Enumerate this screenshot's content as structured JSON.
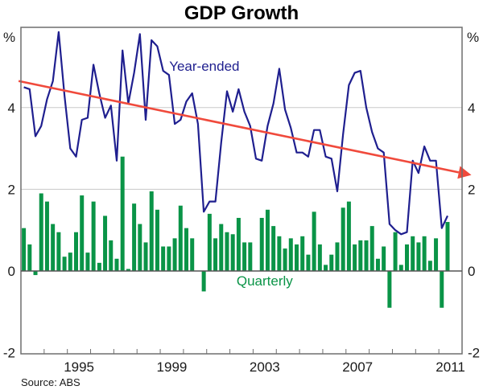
{
  "chart_data": {
    "type": "bar",
    "title": "GDP Growth",
    "ylabel_left": "%",
    "ylabel_right": "%",
    "xlabel": "",
    "source": "Source: ABS",
    "xlim": [
      1993,
      2012
    ],
    "ylim": [
      -2,
      6
    ],
    "yticks": [
      -2,
      0,
      2,
      4
    ],
    "ytick_labels": [
      "-2",
      "0",
      "2",
      "4"
    ],
    "xtick_labels": [
      "1995",
      "1999",
      "2003",
      "2007",
      "2011"
    ],
    "xtick_label_years": [
      1995,
      1999,
      2003,
      2007,
      2011
    ],
    "grid": true,
    "start_quarter": "1993Q1",
    "colors": {
      "year_ended": "#1f1f8f",
      "quarterly": "#0a9447",
      "trend": "#f04a3c",
      "gridline": "#c8c8c8",
      "axis": "#6e6e6e"
    },
    "series": [
      {
        "name": "Quarterly",
        "kind": "bar",
        "values": [
          1.05,
          0.65,
          -0.1,
          1.9,
          1.7,
          1.15,
          0.95,
          0.35,
          0.45,
          0.95,
          1.85,
          0.45,
          1.7,
          0.2,
          1.35,
          0.75,
          0.3,
          2.8,
          0.05,
          1.65,
          1.15,
          0.7,
          1.95,
          1.5,
          0.6,
          0.6,
          0.8,
          1.6,
          1.05,
          0.8,
          0.0,
          -0.5,
          1.4,
          0.8,
          1.15,
          0.95,
          0.9,
          1.3,
          0.7,
          0.7,
          0.0,
          1.3,
          1.5,
          1.1,
          0.85,
          0.55,
          0.8,
          0.65,
          0.85,
          0.4,
          1.45,
          0.65,
          0.15,
          0.4,
          0.7,
          1.55,
          1.7,
          0.65,
          0.75,
          0.75,
          1.1,
          0.3,
          0.6,
          -0.9,
          0.95,
          0.15,
          0.65,
          0.85,
          0.7,
          0.85,
          0.25,
          0.8,
          -0.9,
          1.2
        ]
      },
      {
        "name": "Year-ended",
        "kind": "line",
        "values": [
          4.5,
          4.45,
          3.3,
          3.55,
          4.2,
          4.65,
          5.85,
          4.3,
          3.0,
          2.8,
          3.7,
          3.75,
          5.05,
          4.35,
          3.75,
          4.05,
          2.7,
          5.4,
          4.1,
          4.85,
          5.8,
          3.7,
          5.65,
          5.5,
          4.9,
          4.8,
          3.6,
          3.7,
          4.15,
          4.35,
          3.6,
          1.45,
          1.7,
          1.7,
          3.15,
          4.4,
          3.9,
          4.45,
          3.9,
          3.55,
          2.75,
          2.7,
          3.55,
          4.1,
          4.95,
          3.95,
          3.5,
          2.9,
          2.9,
          2.8,
          3.45,
          3.45,
          2.8,
          2.75,
          1.95,
          3.35,
          4.55,
          4.85,
          4.9,
          4.0,
          3.4,
          3.0,
          2.9,
          1.15,
          1.0,
          0.9,
          0.95,
          2.7,
          2.4,
          3.05,
          2.7,
          2.7,
          1.05,
          1.35
        ]
      }
    ],
    "trend_arrow": {
      "name": "Trend",
      "x": [
        1992.9,
        2012.4
      ],
      "y": [
        4.65,
        2.35
      ]
    },
    "annotations": [
      {
        "text": "Year-ended",
        "x": 2000.9,
        "y": 4.9,
        "series": "Year-ended"
      },
      {
        "text": "Quarterly",
        "x": 2003.5,
        "y": -0.35,
        "series": "Quarterly"
      }
    ]
  }
}
